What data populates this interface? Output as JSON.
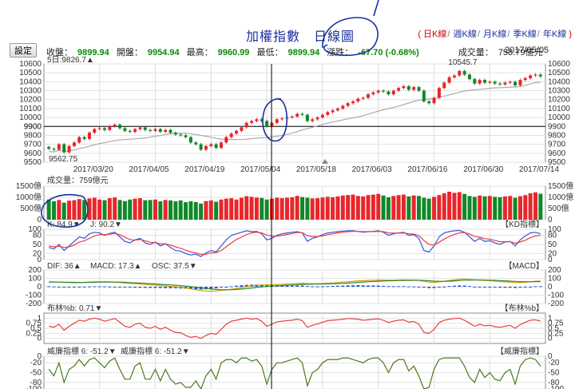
{
  "header": {
    "title": "加權指數　日線圖",
    "period_links": [
      "日K線",
      "週K線",
      "月K線",
      "季K線",
      "年K線"
    ],
    "settings_label": "設定",
    "quote": {
      "close_label": "收盤：",
      "close": "9899.94",
      "open_label": "開盤：",
      "open": "9954.94",
      "high_label": "最高：",
      "high": "9960.99",
      "low_label": "最低：",
      "low": "9899.94",
      "change_label": "漲跌：",
      "change": "-67.70 (-0.68%)",
      "volume_label": "成交量：",
      "volume": "758.79億元"
    },
    "date": "2017/05/05"
  },
  "colors": {
    "up": "#e8262a",
    "down": "#11882a",
    "ma": "#aaaaaa",
    "ref_line": "#e8a800",
    "k_line": "#3355dd",
    "d_line": "#e84040",
    "dif": "#d4a000",
    "macd": "#2a8a2a",
    "osc": "#2255cc",
    "bollinger": "#e84040",
    "williams": "#4a7a1a",
    "ink": "#1a2fa0"
  },
  "chart_data": [
    {
      "type": "candlestick",
      "ma_label": "5日:9826.7▲",
      "ylim": [
        9500,
        10600
      ],
      "yticks": [
        "10600",
        "10500",
        "10400",
        "10300",
        "10200",
        "10100",
        "10000",
        "9900",
        "9800",
        "9700",
        "9600",
        "9500"
      ],
      "ref_value": 9900,
      "ref_label": "9900",
      "max_label": "10545.7",
      "min_label": "9562.75",
      "x_ticks": [
        "2017/03/20",
        "2017/04/05",
        "2017/04/19",
        "2017/05/04",
        "2017/05/18",
        "2017/06/03",
        "2017/06/16",
        "2017/06/30",
        "2017/07/14"
      ],
      "closes": [
        9650,
        9640,
        9700,
        9610,
        9680,
        9720,
        9780,
        9760,
        9830,
        9870,
        9880,
        9860,
        9900,
        9920,
        9880,
        9850,
        9840,
        9870,
        9890,
        9860,
        9850,
        9870,
        9840,
        9860,
        9830,
        9810,
        9800,
        9780,
        9720,
        9700,
        9640,
        9680,
        9700,
        9660,
        9720,
        9780,
        9820,
        9850,
        9890,
        9940,
        9960,
        9980,
        9960,
        9900,
        9940,
        9980,
        9990,
        10000,
        10010,
        10040,
        10030,
        9960,
        9980,
        10000,
        10030,
        10060,
        10080,
        10100,
        10130,
        10160,
        10180,
        10210,
        10220,
        10260,
        10280,
        10300,
        10290,
        10260,
        10300,
        10330,
        10350,
        10310,
        10340,
        10300,
        10180,
        10160,
        10220,
        10330,
        10390,
        10450,
        10470,
        10520,
        10480,
        10430,
        10380,
        10420,
        10390,
        10400,
        10380,
        10370,
        10390,
        10400,
        10360,
        10420,
        10440,
        10470,
        10480,
        10460
      ]
    },
    {
      "type": "bar",
      "label": "成交量：759億元",
      "yticks": [
        "1500億",
        "1000億",
        "500億",
        "0"
      ],
      "ylim": [
        0,
        1500
      ],
      "values": [
        900,
        820,
        880,
        760,
        850,
        870,
        920,
        880,
        950,
        980,
        900,
        870,
        960,
        990,
        880,
        830,
        900,
        940,
        960,
        870,
        880,
        900,
        820,
        880,
        860,
        820,
        860,
        780,
        820,
        790,
        720,
        830,
        860,
        800,
        900,
        940,
        960,
        900,
        980,
        1050,
        1020,
        990,
        970,
        900,
        940,
        980,
        960,
        980,
        1000,
        1060,
        1010,
        980,
        950,
        960,
        990,
        1020,
        1000,
        1040,
        1080,
        1100,
        1120,
        1060,
        1040,
        1100,
        1120,
        1150,
        1080,
        1000,
        1060,
        1100,
        1120,
        1040,
        1080,
        1060,
        980,
        940,
        1020,
        1100,
        1180,
        1250,
        1200,
        1230,
        1150,
        1060,
        1020,
        1080,
        1040,
        1060,
        1020,
        1000,
        1040,
        1060,
        980,
        1050,
        1100,
        1180,
        1220,
        1160
      ]
    },
    {
      "type": "line",
      "name": "KD指標",
      "k_label": "K: 84.9▼",
      "j_label": "J: 90.2▼",
      "yticks": [
        "100",
        "80",
        "50",
        "20",
        "0"
      ],
      "ylim": [
        0,
        100
      ],
      "k": [
        40,
        35,
        50,
        30,
        45,
        60,
        75,
        70,
        85,
        90,
        88,
        80,
        86,
        90,
        75,
        60,
        55,
        65,
        70,
        55,
        50,
        58,
        45,
        52,
        40,
        30,
        28,
        20,
        15,
        18,
        10,
        22,
        30,
        25,
        45,
        65,
        80,
        85,
        90,
        95,
        92,
        93,
        85,
        65,
        70,
        80,
        85,
        88,
        90,
        92,
        88,
        60,
        70,
        75,
        82,
        88,
        90,
        92,
        94,
        95,
        95,
        93,
        90,
        92,
        93,
        95,
        90,
        80,
        85,
        88,
        90,
        80,
        82,
        70,
        30,
        25,
        45,
        75,
        88,
        92,
        95,
        96,
        90,
        75,
        60,
        70,
        60,
        62,
        55,
        50,
        58,
        60,
        45,
        65,
        78,
        88,
        90,
        85
      ],
      "d": [
        45,
        42,
        44,
        40,
        42,
        48,
        58,
        62,
        70,
        78,
        82,
        82,
        84,
        86,
        82,
        74,
        66,
        64,
        66,
        62,
        57,
        56,
        52,
        52,
        48,
        42,
        37,
        31,
        25,
        22,
        17,
        18,
        22,
        23,
        30,
        42,
        55,
        66,
        74,
        83,
        88,
        90,
        88,
        81,
        77,
        77,
        80,
        83,
        86,
        89,
        89,
        79,
        76,
        76,
        78,
        82,
        85,
        88,
        90,
        92,
        93,
        93,
        92,
        92,
        92,
        93,
        92,
        88,
        87,
        87,
        88,
        85,
        84,
        79,
        63,
        50,
        48,
        57,
        68,
        76,
        83,
        88,
        89,
        84,
        76,
        74,
        69,
        67,
        63,
        59,
        59,
        59,
        54,
        58,
        64,
        72,
        78,
        80
      ]
    },
    {
      "type": "line",
      "name": "MACD",
      "dif_label": "DIF: 36▲",
      "macd_label": "MACD: 17.3▲",
      "osc_label": "OSC: 37.5▼",
      "yticks": [
        "200",
        "100",
        "0",
        "-100",
        "-200"
      ],
      "ylim": [
        -200,
        200
      ],
      "dif": [
        60,
        58,
        55,
        52,
        50,
        48,
        50,
        52,
        55,
        58,
        60,
        60,
        58,
        55,
        50,
        45,
        40,
        36,
        32,
        28,
        24,
        20,
        15,
        10,
        5,
        0,
        -8,
        -15,
        -25,
        -35,
        -45,
        -50,
        -52,
        -50,
        -45,
        -38,
        -30,
        -20,
        -10,
        0,
        10,
        18,
        22,
        22,
        24,
        28,
        30,
        33,
        36,
        40,
        42,
        38,
        36,
        36,
        38,
        42,
        46,
        50,
        55,
        60,
        65,
        70,
        72,
        75,
        78,
        80,
        80,
        78,
        78,
        80,
        82,
        80,
        80,
        76,
        65,
        55,
        52,
        58,
        66,
        75,
        82,
        90,
        92,
        88,
        82,
        80,
        76,
        72,
        68,
        62,
        58,
        55,
        50,
        50,
        54,
        60,
        66,
        68
      ],
      "macd": [
        55,
        55,
        55,
        54,
        53,
        52,
        51,
        51,
        52,
        53,
        55,
        56,
        56,
        56,
        55,
        53,
        50,
        47,
        44,
        41,
        37,
        34,
        30,
        26,
        22,
        18,
        13,
        8,
        2,
        -5,
        -13,
        -20,
        -27,
        -32,
        -35,
        -36,
        -35,
        -32,
        -28,
        -22,
        -15,
        -8,
        -2,
        3,
        7,
        11,
        15,
        18,
        22,
        25,
        28,
        30,
        31,
        32,
        33,
        34,
        36,
        38,
        41,
        44,
        48,
        52,
        56,
        60,
        63,
        66,
        69,
        71,
        72,
        74,
        75,
        76,
        77,
        77,
        75,
        71,
        67,
        65,
        65,
        67,
        70,
        74,
        78,
        80,
        81,
        81,
        80,
        78,
        76,
        73,
        70,
        67,
        64,
        61,
        60,
        60,
        61,
        62
      ],
      "osc": [
        5,
        3,
        0,
        -2,
        -3,
        -4,
        -1,
        1,
        3,
        5,
        5,
        4,
        2,
        -1,
        -5,
        -8,
        -10,
        -11,
        -12,
        -13,
        -13,
        -14,
        -15,
        -16,
        -17,
        -18,
        -21,
        -23,
        -27,
        -30,
        -32,
        -30,
        -25,
        -18,
        -10,
        -2,
        5,
        12,
        18,
        22,
        25,
        26,
        24,
        19,
        17,
        17,
        15,
        15,
        14,
        15,
        14,
        8,
        5,
        4,
        5,
        8,
        10,
        12,
        14,
        16,
        17,
        18,
        16,
        15,
        15,
        14,
        11,
        7,
        6,
        6,
        7,
        4,
        3,
        -1,
        -10,
        -16,
        -15,
        -7,
        1,
        8,
        12,
        16,
        14,
        8,
        1,
        -1,
        -4,
        -6,
        -8,
        -11,
        -12,
        -12,
        -14,
        -11,
        -6,
        0,
        5,
        6
      ]
    },
    {
      "type": "line",
      "name": "布林%b",
      "label": "布林%b: 0.71▼",
      "yticks_left": [
        "1",
        "0.75",
        "0.5",
        "0.25",
        "0"
      ],
      "yticks_right": [
        "1",
        "0.75",
        "0.5",
        "0.25",
        "0"
      ],
      "ylim": [
        -0.25,
        1.25
      ],
      "values": [
        0.6,
        0.55,
        0.7,
        0.4,
        0.6,
        0.75,
        0.9,
        0.85,
        0.95,
        1.0,
        0.95,
        0.85,
        0.92,
        0.98,
        0.8,
        0.6,
        0.55,
        0.7,
        0.75,
        0.55,
        0.5,
        0.6,
        0.45,
        0.55,
        0.4,
        0.3,
        0.28,
        0.15,
        0.05,
        0.1,
        0.0,
        0.15,
        0.25,
        0.2,
        0.45,
        0.7,
        0.85,
        0.9,
        0.95,
        1.0,
        0.95,
        0.98,
        0.85,
        0.6,
        0.7,
        0.82,
        0.85,
        0.88,
        0.9,
        0.95,
        0.88,
        0.55,
        0.65,
        0.72,
        0.8,
        0.88,
        0.9,
        0.92,
        0.95,
        0.98,
        0.97,
        0.95,
        0.9,
        0.92,
        0.95,
        0.97,
        0.9,
        0.78,
        0.85,
        0.9,
        0.92,
        0.8,
        0.84,
        0.7,
        0.3,
        0.25,
        0.45,
        0.78,
        0.9,
        0.95,
        0.98,
        1.0,
        0.9,
        0.75,
        0.6,
        0.7,
        0.62,
        0.65,
        0.58,
        0.55,
        0.6,
        0.65,
        0.5,
        0.68,
        0.8,
        0.9,
        0.92,
        0.85
      ]
    },
    {
      "type": "line",
      "name": "威廉指標",
      "label_a": "威廉指標 6: -51.2▼",
      "label_b": "威廉指標 6: -51.2▼",
      "yticks": [
        "0",
        "-20",
        "-50",
        "-80",
        "-100"
      ],
      "ylim": [
        -100,
        0
      ],
      "values": [
        -40,
        -60,
        -20,
        -80,
        -40,
        -30,
        -10,
        -30,
        -10,
        -5,
        -20,
        -35,
        -15,
        -5,
        -40,
        -70,
        -70,
        -30,
        -20,
        -70,
        -70,
        -40,
        -75,
        -40,
        -70,
        -85,
        -80,
        -95,
        -95,
        -75,
        -100,
        -60,
        -40,
        -70,
        -20,
        -10,
        -10,
        -20,
        -5,
        -5,
        -15,
        -10,
        -30,
        -85,
        -40,
        -20,
        -20,
        -15,
        -10,
        -5,
        -20,
        -90,
        -50,
        -40,
        -20,
        -10,
        -10,
        -10,
        -5,
        -5,
        -10,
        -15,
        -20,
        -10,
        -5,
        -5,
        -20,
        -50,
        -20,
        -10,
        -10,
        -45,
        -30,
        -60,
        -100,
        -95,
        -40,
        -10,
        -5,
        -5,
        -5,
        -5,
        -30,
        -65,
        -80,
        -40,
        -65,
        -50,
        -70,
        -75,
        -50,
        -40,
        -85,
        -30,
        -10,
        -5,
        -10,
        -30
      ]
    }
  ]
}
